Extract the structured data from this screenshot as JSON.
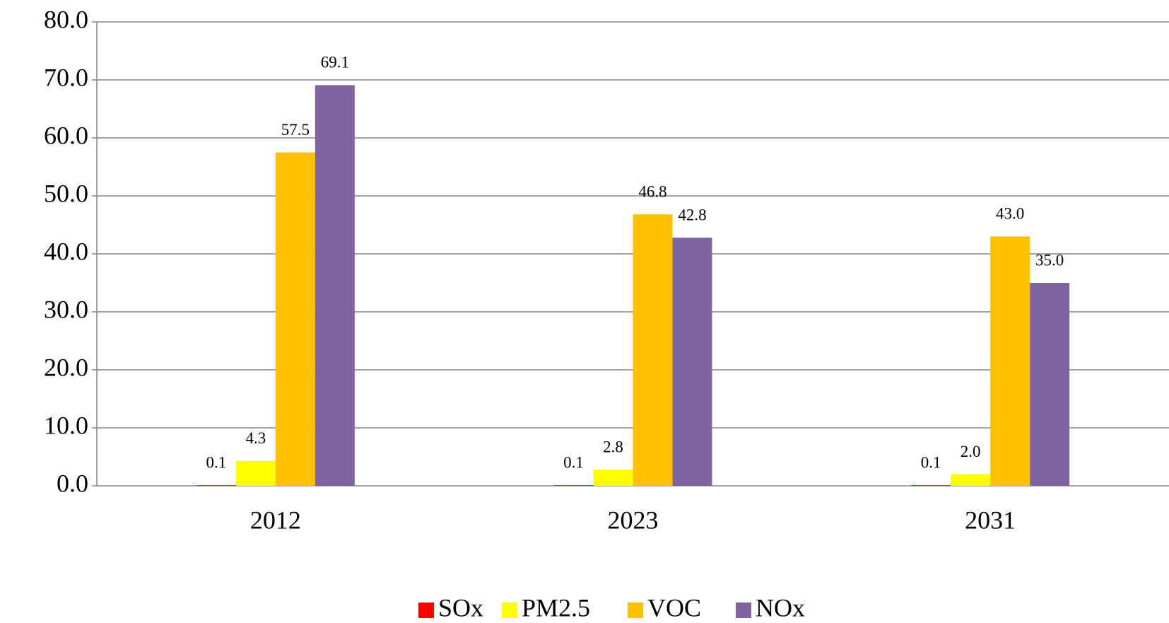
{
  "chart_data": {
    "type": "bar",
    "categories": [
      "2012",
      "2023",
      "2031"
    ],
    "series": [
      {
        "name": "SOx",
        "color": "#ff0000",
        "values": [
          0.1,
          0.1,
          0.1
        ],
        "value_labels": [
          "0.1",
          "0.1",
          "0.1"
        ]
      },
      {
        "name": "PM2.5",
        "color": "#ffff00",
        "values": [
          4.3,
          2.8,
          2.0
        ],
        "value_labels": [
          "4.3",
          "2.8",
          "2.0"
        ]
      },
      {
        "name": "VOC",
        "color": "#ffc000",
        "values": [
          57.5,
          46.8,
          43.0
        ],
        "value_labels": [
          "57.5",
          "46.8",
          "43.0"
        ]
      },
      {
        "name": "NOx",
        "color": "#8064a2",
        "values": [
          69.1,
          42.8,
          35.0
        ],
        "value_labels": [
          "69.1",
          "42.8",
          "35.0"
        ]
      }
    ],
    "ylim": [
      0,
      80
    ],
    "yticks": [
      {
        "value": 0,
        "label": "0.0"
      },
      {
        "value": 10,
        "label": "10.0"
      },
      {
        "value": 20,
        "label": "20.0"
      },
      {
        "value": 30,
        "label": "30.0"
      },
      {
        "value": 40,
        "label": "40.0"
      },
      {
        "value": 50,
        "label": "50.0"
      },
      {
        "value": 60,
        "label": "60.0"
      },
      {
        "value": 70,
        "label": "70.0"
      },
      {
        "value": 80,
        "label": "80.0"
      }
    ],
    "grid": true,
    "legend": "bottom"
  }
}
